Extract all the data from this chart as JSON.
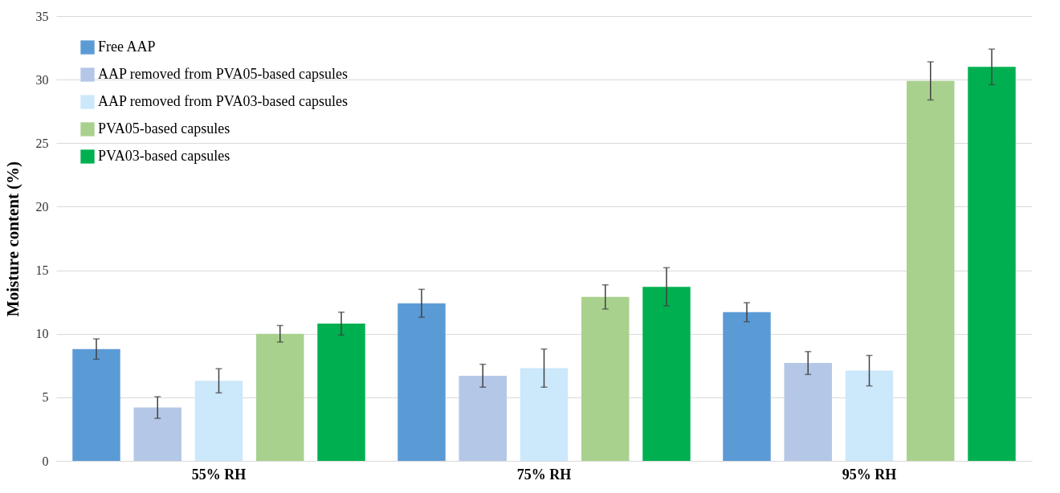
{
  "chart_data": {
    "type": "bar",
    "ylabel": "Moisture content (%)",
    "categories": [
      "55% RH",
      "75% RH",
      "95% RH"
    ],
    "series": [
      {
        "name": "Free AAP",
        "color": "#5b9bd5",
        "values": [
          8.8,
          12.4,
          11.7
        ],
        "errors": [
          0.8,
          1.1,
          0.75
        ]
      },
      {
        "name": "AAP removed from PVA05-based capsules",
        "color": "#b4c7e7",
        "values": [
          4.2,
          6.7,
          7.7
        ],
        "errors": [
          0.85,
          0.9,
          0.9
        ]
      },
      {
        "name": " AAP removed from PVA03-based capsules",
        "color": "#cce8fb",
        "values": [
          6.3,
          7.3,
          7.1
        ],
        "errors": [
          0.95,
          1.5,
          1.2
        ]
      },
      {
        "name": "PVA05-based capsules",
        "color": "#a9d18e",
        "values": [
          10.0,
          12.9,
          29.9
        ],
        "errors": [
          0.65,
          0.95,
          1.5
        ]
      },
      {
        "name": "PVA03-based capsules",
        "color": "#00b050",
        "values": [
          10.8,
          13.7,
          31.0
        ],
        "errors": [
          0.9,
          1.5,
          1.4
        ]
      }
    ],
    "ylim": [
      0,
      35
    ],
    "yticks": [
      0,
      5,
      10,
      15,
      20,
      25,
      30,
      35
    ],
    "grid": "y",
    "legend": "top left"
  }
}
